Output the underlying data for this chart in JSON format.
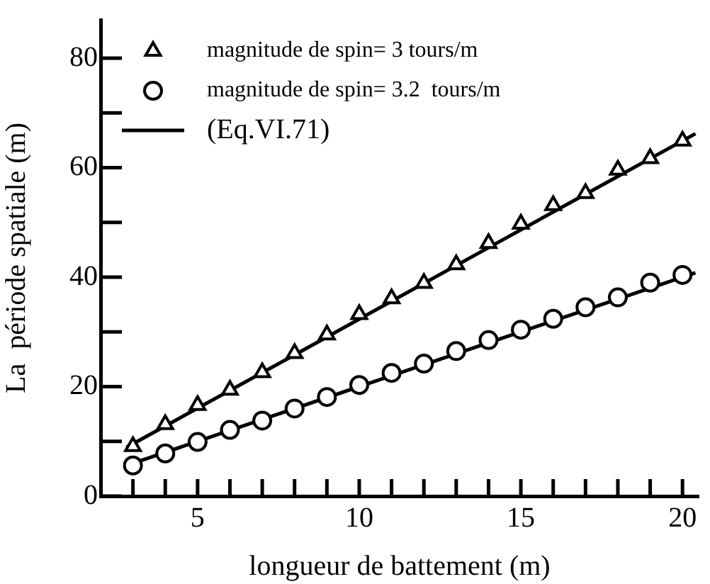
{
  "chart_data": {
    "type": "scatter",
    "xlabel": "longueur de battement (m)",
    "ylabel": "La  période spatiale (m)",
    "xlim": [
      2,
      20.5
    ],
    "ylim": [
      0,
      87
    ],
    "xticks": [
      {
        "value": 3,
        "label": null
      },
      {
        "value": 4,
        "label": null
      },
      5,
      {
        "value": 6,
        "label": null
      },
      {
        "value": 7,
        "label": null
      },
      {
        "value": 8,
        "label": null
      },
      {
        "value": 9,
        "label": null
      },
      10,
      {
        "value": 11,
        "label": null
      },
      {
        "value": 12,
        "label": null
      },
      {
        "value": 13,
        "label": null
      },
      {
        "value": 14,
        "label": null
      },
      15,
      {
        "value": 16,
        "label": null
      },
      {
        "value": 17,
        "label": null
      },
      {
        "value": 18,
        "label": null
      },
      {
        "value": 19,
        "label": null
      },
      20
    ],
    "yticks": [
      0,
      {
        "value": 10,
        "label": null
      },
      20,
      {
        "value": 30,
        "label": null
      },
      40,
      {
        "value": 50,
        "label": null
      },
      60,
      {
        "value": 70,
        "label": null
      },
      80
    ],
    "grid": false,
    "legend": "top left",
    "x": [
      3,
      4,
      5,
      6,
      7,
      8,
      9,
      10,
      11,
      12,
      13,
      14,
      15,
      16,
      17,
      18,
      19,
      20
    ],
    "series": [
      {
        "name": "magnitude de spin= 3 tours/m",
        "color": "#000000",
        "marker": "triangle",
        "values": [
          9.1,
          13.1,
          16.6,
          19.4,
          22.6,
          26.1,
          29.5,
          33.2,
          36.1,
          38.9,
          42.3,
          46.2,
          49.7,
          53.1,
          55.3,
          59.6,
          61.7,
          64.9
        ]
      },
      {
        "name": "magnitude de spin= 3.2  tours/m",
        "color": "#000000",
        "marker": "circle",
        "values": [
          5.6,
          7.8,
          9.9,
          12.1,
          13.8,
          16.0,
          18.1,
          20.3,
          22.5,
          24.2,
          26.5,
          28.5,
          30.4,
          32.4,
          34.5,
          36.3,
          39.0,
          40.4
        ]
      },
      {
        "name": "(Eq.VI.71)",
        "type": "line",
        "color": "#000000",
        "marker": "none",
        "line_style": "solid",
        "x": [
          2.8,
          8,
          14,
          20.4
        ],
        "values": [
          8.9,
          25.8,
          45.4,
          66.2
        ]
      },
      {
        "type": "line",
        "color": "#000000",
        "marker": "none",
        "line_style": "solid",
        "x": [
          2.8,
          8,
          14,
          20.4
        ],
        "values": [
          5.6,
          16.0,
          28.0,
          40.8
        ]
      }
    ]
  }
}
